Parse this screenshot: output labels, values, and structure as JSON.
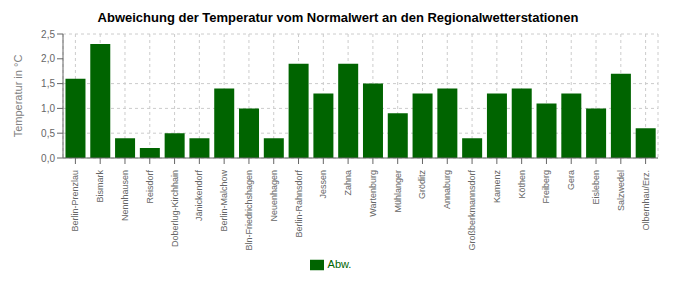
{
  "chart_data": {
    "type": "bar",
    "title": "Abweichung der Temperatur vom Normalwert an den Regionalwetterstationen",
    "ylabel": "Temperatur in °C",
    "categories": [
      "Berlin-Prenzlau",
      "Bismark",
      "Nennhausen",
      "Reisdorf",
      "Doberlug-Kirchhain",
      "Jänickendorf",
      "Berlin-Malchow",
      "Bln-Friedrichshagen",
      "Neuenhagen",
      "Berlin-Rahnsdorf",
      "Jessen",
      "Zahna",
      "Wartenburg",
      "Mühlanger",
      "Gröditz",
      "Annaburg",
      "Großberkmannsdorf",
      "Kamenz",
      "Köthen",
      "Freiberg",
      "Gera",
      "Eisleben",
      "Salzwedel",
      "Olbernhau/Erz."
    ],
    "series": [
      {
        "name": "Abw.",
        "color": "#006400",
        "values": [
          1.6,
          2.3,
          0.4,
          0.2,
          0.5,
          0.4,
          1.4,
          1.0,
          0.4,
          1.9,
          1.3,
          1.9,
          1.5,
          0.9,
          1.3,
          1.4,
          0.4,
          1.3,
          1.4,
          1.1,
          1.3,
          1.0,
          1.7,
          0.6
        ]
      }
    ],
    "ylim": [
      0,
      2.5
    ],
    "yticks": [
      {
        "value": 0.0,
        "label": "0,0"
      },
      {
        "value": 0.5,
        "label": "0,5"
      },
      {
        "value": 1.0,
        "label": "1,0"
      },
      {
        "value": 1.5,
        "label": "1,5"
      },
      {
        "value": 2.0,
        "label": "2,0"
      },
      {
        "value": 2.5,
        "label": "2,5"
      }
    ],
    "grid": true,
    "legend": "bottom"
  }
}
